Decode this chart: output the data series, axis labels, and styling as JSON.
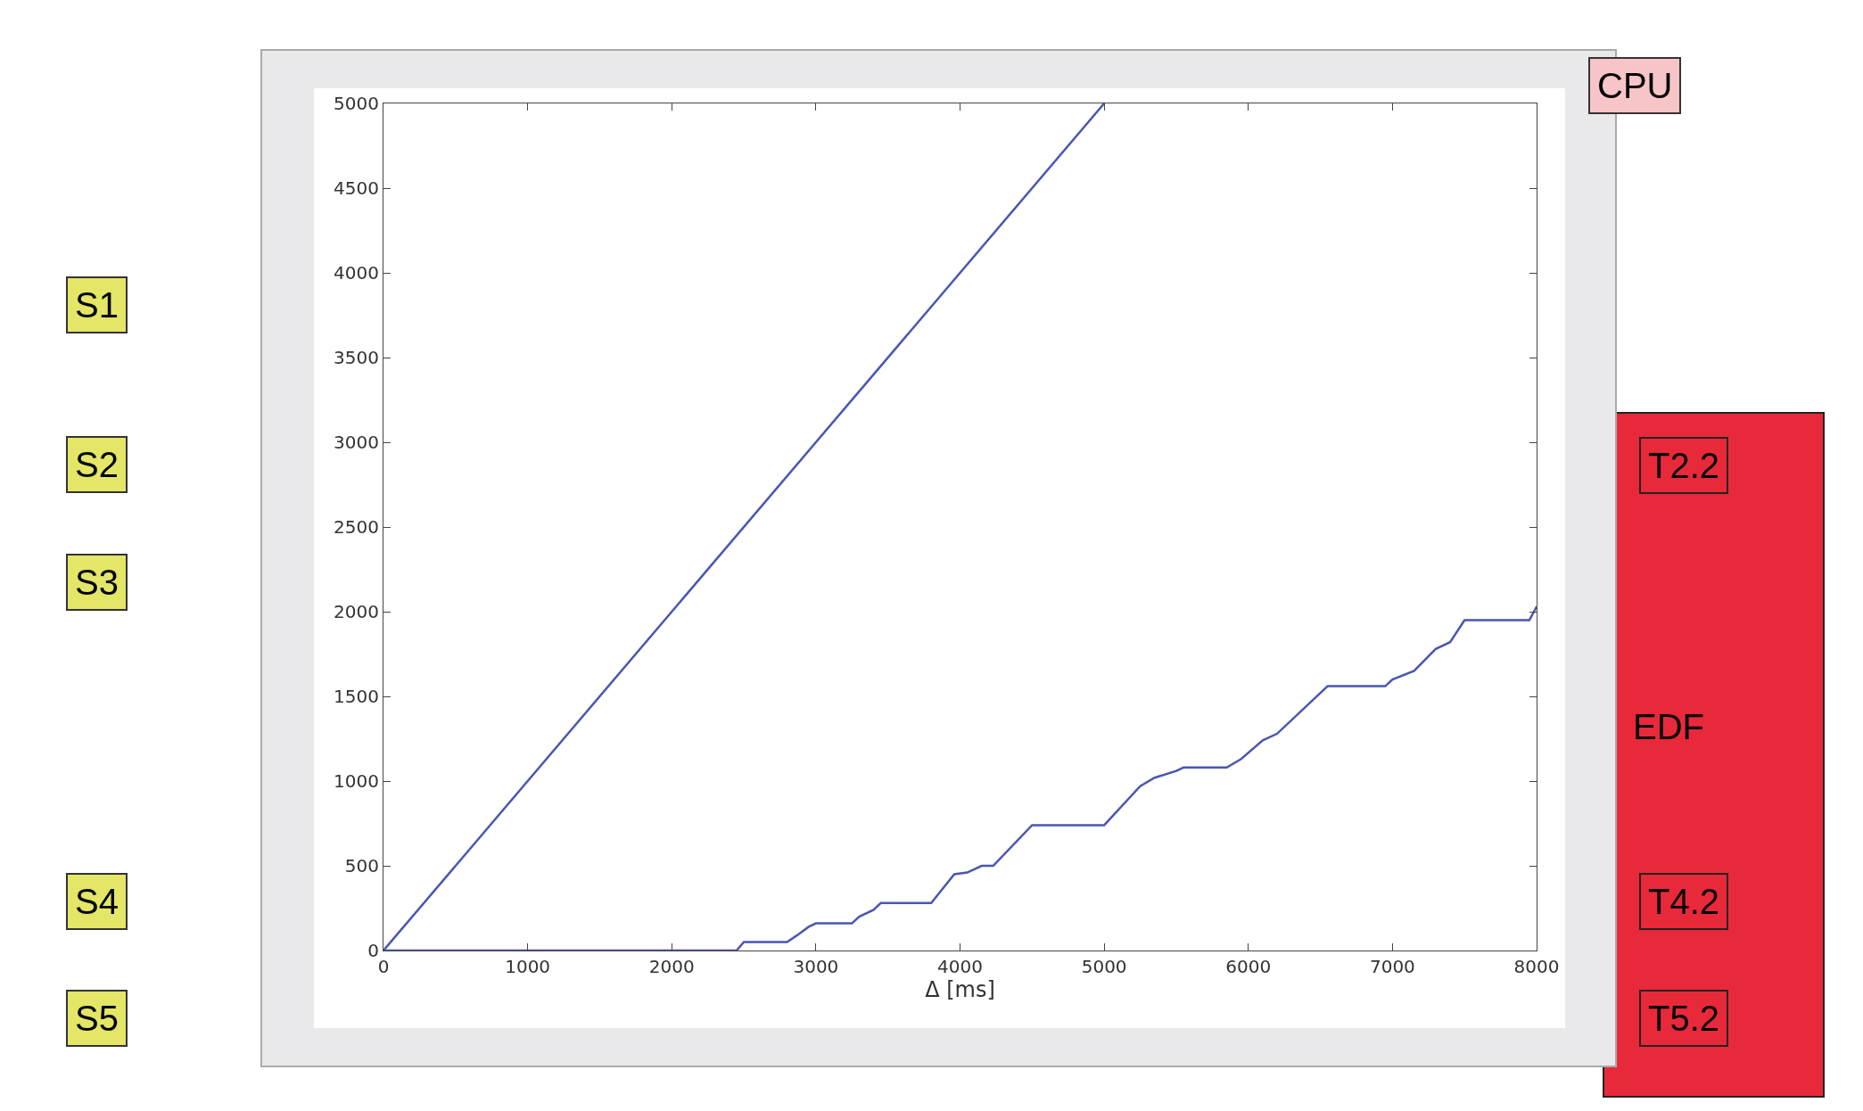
{
  "chart_data": {
    "type": "line",
    "xlabel": "Δ [ms]",
    "xlim": [
      0,
      8000
    ],
    "ylim": [
      0,
      5000
    ],
    "xticks": [
      0,
      1000,
      2000,
      3000,
      4000,
      5000,
      6000,
      7000,
      8000
    ],
    "yticks": [
      0,
      500,
      1000,
      1500,
      2000,
      2500,
      3000,
      3500,
      4000,
      4500,
      5000
    ],
    "marker": "none",
    "line_style": "solid",
    "series": [
      {
        "color": "#4a56b0",
        "x": [
          0,
          5000
        ],
        "values": [
          0,
          5000
        ]
      },
      {
        "color": "#4a56b0",
        "x": [
          0,
          2450,
          2500,
          2800,
          2870,
          2950,
          3000,
          3250,
          3300,
          3400,
          3450,
          3800,
          3960,
          4050,
          4150,
          4230,
          4500,
          5000,
          5250,
          5350,
          5500,
          5550,
          5850,
          5950,
          6100,
          6200,
          6500,
          6550,
          6950,
          7000,
          7150,
          7300,
          7400,
          7500,
          7950,
          8000
        ],
        "values": [
          0,
          0,
          50,
          50,
          90,
          140,
          160,
          160,
          200,
          240,
          280,
          280,
          450,
          460,
          500,
          500,
          740,
          740,
          970,
          1020,
          1060,
          1080,
          1080,
          1130,
          1240,
          1280,
          1520,
          1560,
          1560,
          1600,
          1650,
          1780,
          1820,
          1950,
          1950,
          2030
        ]
      }
    ],
    "annotations": [
      "S1",
      "S2",
      "S3",
      "S4",
      "S5",
      "CPU",
      "T2.2",
      "EDF",
      "T4.2",
      "T5.2"
    ]
  }
}
